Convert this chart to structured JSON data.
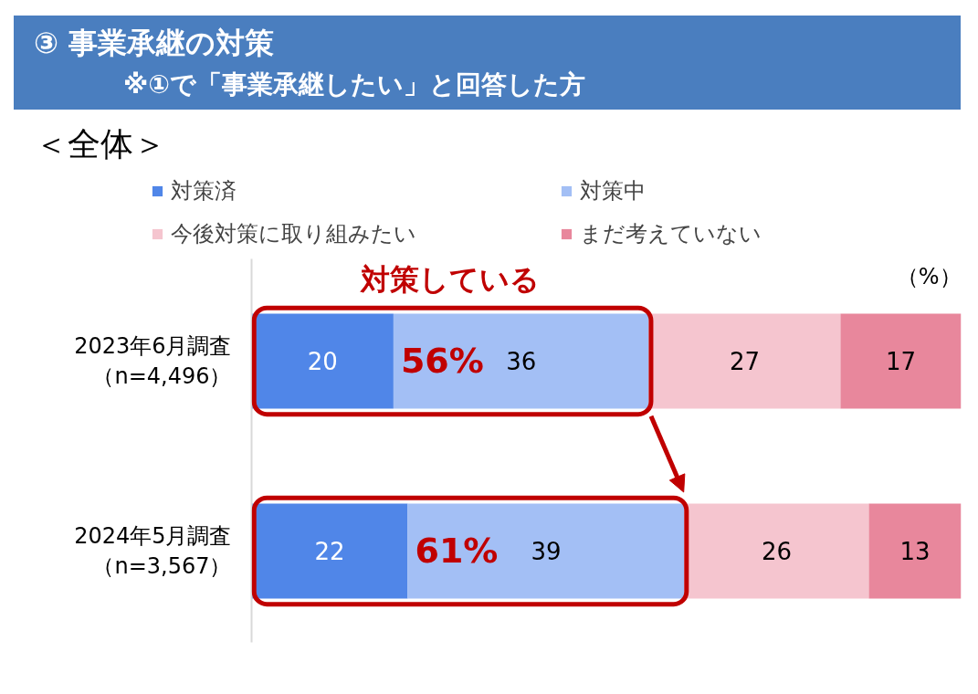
{
  "chart_data": {
    "type": "bar",
    "orientation": "horizontal",
    "stacked": true,
    "title": "③ 事業承継の対策",
    "subtitle": "※①で「事業承継したい」と回答した方",
    "categories": [
      "2023年6月調査（n=4,496）",
      "2024年5月調査（n=3,567）"
    ],
    "series": [
      {
        "name": "対策済",
        "color": "#5086e8",
        "values": [
          20,
          22
        ]
      },
      {
        "name": "対策中",
        "color": "#a3bff5",
        "values": [
          36,
          39
        ]
      },
      {
        "name": "今後対策に取り組みたい",
        "color": "#f5c5cf",
        "values": [
          27,
          26
        ]
      },
      {
        "name": "まだ考えていない",
        "color": "#e8879c",
        "values": [
          17,
          13
        ]
      }
    ],
    "xlim": [
      0,
      100
    ],
    "data_labels": true,
    "legend": "top",
    "tick_labels": "y",
    "annotations": [
      "＜全体＞",
      "対策している",
      "（%）",
      "56%",
      "61%"
    ]
  }
}
